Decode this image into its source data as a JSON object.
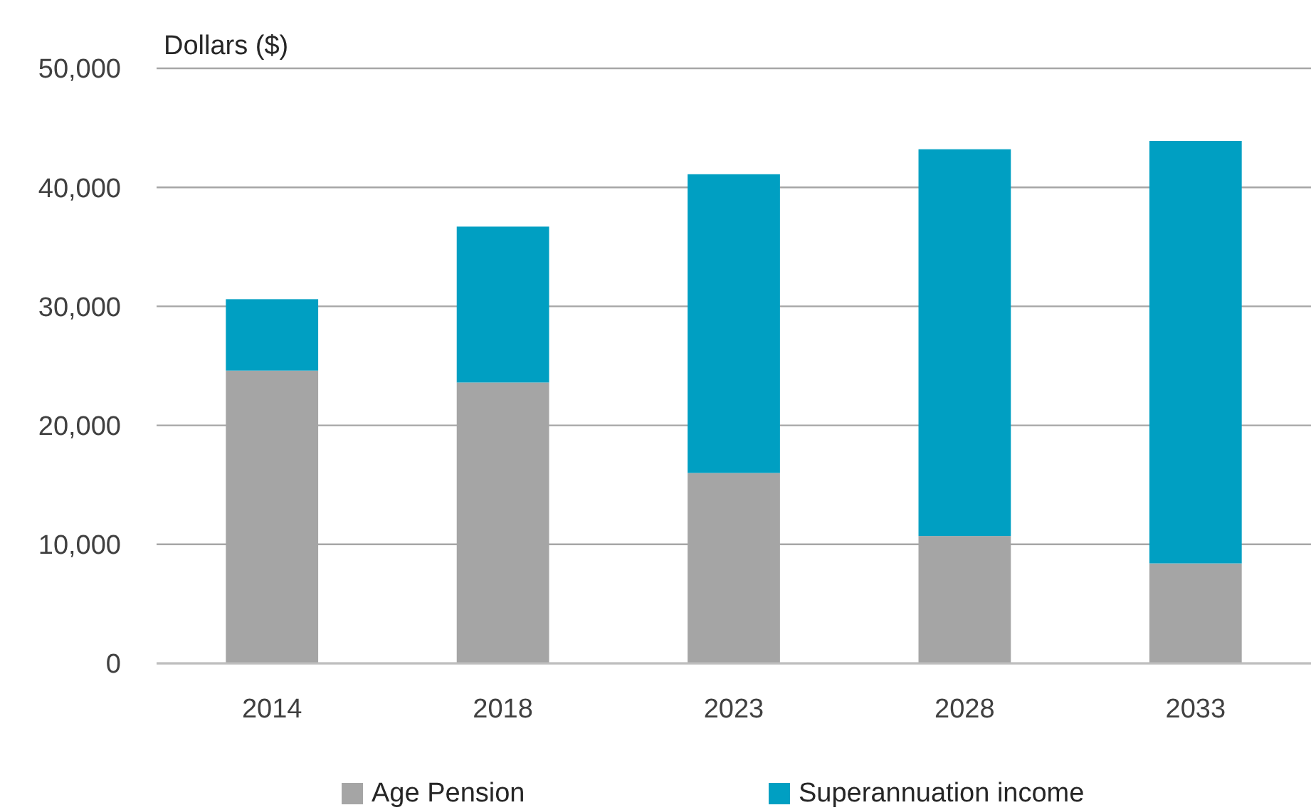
{
  "chart_data": {
    "type": "bar",
    "ylabel": "Dollars ($)",
    "categories": [
      "2014",
      "2018",
      "2023",
      "2028",
      "2033"
    ],
    "stacked": true,
    "series": [
      {
        "name": "Age Pension",
        "color": "#a5a5a5",
        "values": [
          24600,
          23600,
          16000,
          10700,
          8400
        ]
      },
      {
        "name": "Superannuation income",
        "color": "#009fc2",
        "values": [
          6000,
          13100,
          25100,
          32500,
          35500
        ]
      }
    ],
    "ylim": [
      0,
      50000
    ],
    "yticks": [
      {
        "value": 0,
        "label": "0"
      },
      {
        "value": 10000,
        "label": "10,000"
      },
      {
        "value": 20000,
        "label": "20,000"
      },
      {
        "value": 30000,
        "label": "30,000"
      },
      {
        "value": 40000,
        "label": "40,000"
      },
      {
        "value": 50000,
        "label": "50,000"
      }
    ],
    "grid": "y",
    "legend": "bottom"
  }
}
